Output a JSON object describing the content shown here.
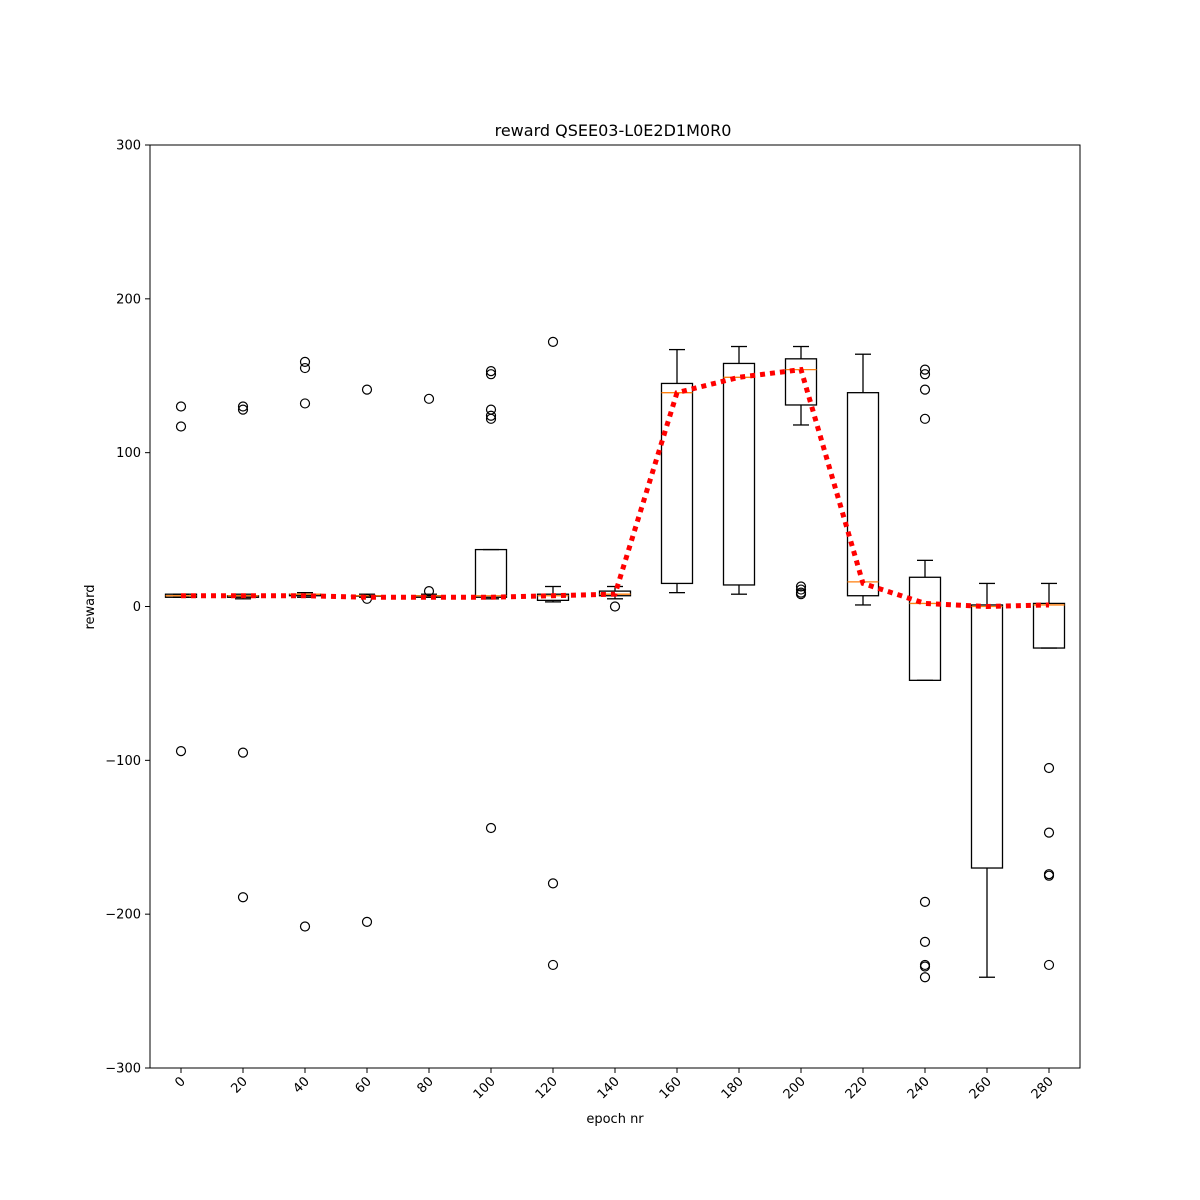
{
  "chart_data": {
    "type": "box",
    "title": "reward QSEE03-L0E2D1M0R0",
    "xlabel": "epoch nr",
    "ylabel": "reward",
    "ylim": [
      -300,
      300
    ],
    "yticks": [
      -300,
      -200,
      -100,
      0,
      100,
      200,
      300
    ],
    "ytick_labels": [
      "−300",
      "−200",
      "−100",
      "0",
      "100",
      "200",
      "300"
    ],
    "categories": [
      "0",
      "20",
      "40",
      "60",
      "80",
      "100",
      "120",
      "140",
      "160",
      "180",
      "200",
      "220",
      "240",
      "260",
      "280"
    ],
    "boxes": [
      {
        "whislo": 6,
        "q1": 6,
        "med": 7,
        "q3": 8,
        "whishi": 8,
        "fliers": [
          130,
          117,
          -94
        ]
      },
      {
        "whislo": 5,
        "q1": 6,
        "med": 7,
        "q3": 7,
        "whishi": 8,
        "fliers": [
          130,
          128,
          -95,
          -189
        ]
      },
      {
        "whislo": 6,
        "q1": 7,
        "med": 8,
        "q3": 8,
        "whishi": 9,
        "fliers": [
          159,
          155,
          132,
          -208
        ]
      },
      {
        "whislo": 6,
        "q1": 7,
        "med": 7,
        "q3": 7,
        "whishi": 8,
        "fliers": [
          141,
          5,
          -205
        ]
      },
      {
        "whislo": 6,
        "q1": 6,
        "med": 7,
        "q3": 7,
        "whishi": 8,
        "fliers": [
          135,
          10
        ]
      },
      {
        "whislo": 5,
        "q1": 6,
        "med": 7,
        "q3": 37,
        "whishi": 37,
        "fliers": [
          153,
          151,
          128,
          124,
          122,
          -144
        ]
      },
      {
        "whislo": 3,
        "q1": 4,
        "med": 7,
        "q3": 8,
        "whishi": 13,
        "fliers": [
          172,
          -180,
          -233
        ]
      },
      {
        "whislo": 5,
        "q1": 7,
        "med": 8,
        "q3": 10,
        "whishi": 13,
        "fliers": [
          0
        ]
      },
      {
        "whislo": 9,
        "q1": 15,
        "med": 139,
        "q3": 145,
        "whishi": 167,
        "fliers": []
      },
      {
        "whislo": 8,
        "q1": 14,
        "med": 149,
        "q3": 158,
        "whishi": 169,
        "fliers": []
      },
      {
        "whislo": 118,
        "q1": 131,
        "med": 154,
        "q3": 161,
        "whishi": 169,
        "fliers": [
          13,
          11,
          9,
          8
        ]
      },
      {
        "whislo": 1,
        "q1": 7,
        "med": 16,
        "q3": 139,
        "whishi": 164,
        "fliers": []
      },
      {
        "whislo": -48,
        "q1": -48,
        "med": 2,
        "q3": 19,
        "whishi": 30,
        "fliers": [
          154,
          151,
          141,
          122,
          -192,
          -218,
          -233,
          -234,
          -241
        ]
      },
      {
        "whislo": -241,
        "q1": -170,
        "med": 0,
        "q3": 1,
        "whishi": 15,
        "fliers": []
      },
      {
        "whislo": -27,
        "q1": -27,
        "med": 1,
        "q3": 2,
        "whishi": 15,
        "fliers": [
          -105,
          -147,
          -174,
          -175,
          -233
        ]
      }
    ],
    "trend_line": {
      "style": "dotted",
      "color": "#ff0000",
      "values": [
        7,
        7,
        7,
        6,
        6,
        6,
        7,
        8,
        139,
        149,
        154,
        15,
        2,
        0,
        1
      ]
    },
    "colors": {
      "box": "#000000",
      "median": "#ff7f0e",
      "trend": "#ff0000"
    },
    "grid": false,
    "legend": "none"
  }
}
